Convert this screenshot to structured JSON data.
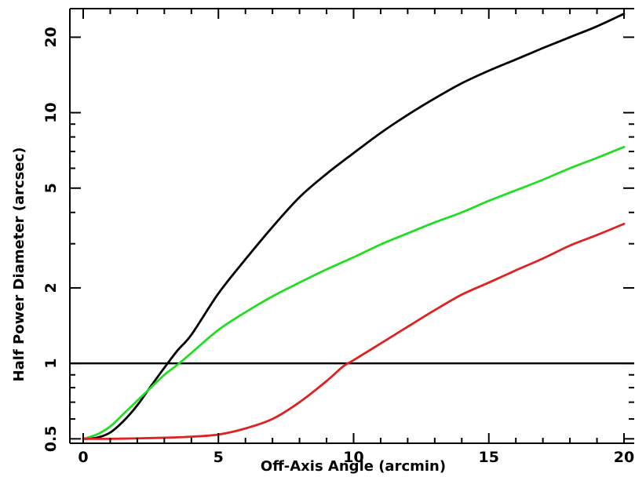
{
  "chart_data": {
    "type": "line",
    "title": "",
    "xlabel": "Off-Axis Angle (arcmin)",
    "ylabel": "Half Power Diameter (arcsec)",
    "xlim": [
      0,
      20
    ],
    "ylim": [
      0.48,
      26
    ],
    "yscale": "log",
    "grid": false,
    "legend": "none",
    "x_ticks": [
      0,
      5,
      10,
      15,
      20
    ],
    "x_tick_labels": [
      "0",
      "5",
      "10",
      "15",
      "20"
    ],
    "y_ticks": [
      0.5,
      1,
      2,
      5,
      10,
      20
    ],
    "y_tick_labels": [
      "0.5",
      "1",
      "2",
      "5",
      "10",
      "20"
    ],
    "y_minor_ticks": [
      0.6,
      0.7,
      0.8,
      0.9,
      3,
      4,
      6,
      7,
      8,
      9
    ],
    "reference_line": {
      "y": 1,
      "color": "#000000"
    },
    "series": [
      {
        "color": "#000000",
        "x": [
          0,
          0.5,
          1,
          1.5,
          2,
          2.5,
          3,
          3.5,
          4,
          5,
          6,
          7,
          8,
          9,
          10,
          11,
          12,
          13,
          14,
          15,
          16,
          17,
          18,
          19,
          20
        ],
        "y": [
          0.5,
          0.505,
          0.53,
          0.59,
          0.68,
          0.81,
          0.96,
          1.13,
          1.3,
          1.9,
          2.6,
          3.5,
          4.6,
          5.7,
          6.9,
          8.3,
          9.8,
          11.4,
          13.1,
          14.7,
          16.3,
          18.1,
          20.0,
          22.1,
          24.8
        ]
      },
      {
        "color": "#22dd22",
        "x": [
          0,
          0.5,
          1,
          1.5,
          2,
          2.5,
          3,
          3.5,
          4,
          5,
          6,
          7,
          8,
          9,
          10,
          11,
          12,
          13,
          14,
          15,
          16,
          17,
          18,
          19,
          20
        ],
        "y": [
          0.5,
          0.52,
          0.56,
          0.63,
          0.71,
          0.8,
          0.9,
          0.99,
          1.1,
          1.36,
          1.6,
          1.85,
          2.1,
          2.37,
          2.65,
          2.98,
          3.3,
          3.65,
          4.0,
          4.45,
          4.9,
          5.4,
          6.0,
          6.6,
          7.3
        ]
      },
      {
        "color": "#dd2222",
        "x": [
          0,
          1,
          2,
          3,
          4,
          5,
          6,
          7,
          8,
          9,
          9.6,
          10,
          11,
          12,
          13,
          14,
          15,
          16,
          17,
          18,
          19,
          20
        ],
        "y": [
          0.5,
          0.5,
          0.502,
          0.505,
          0.51,
          0.52,
          0.55,
          0.6,
          0.7,
          0.85,
          0.97,
          1.03,
          1.2,
          1.4,
          1.63,
          1.88,
          2.1,
          2.35,
          2.62,
          2.95,
          3.25,
          3.6
        ]
      }
    ]
  }
}
